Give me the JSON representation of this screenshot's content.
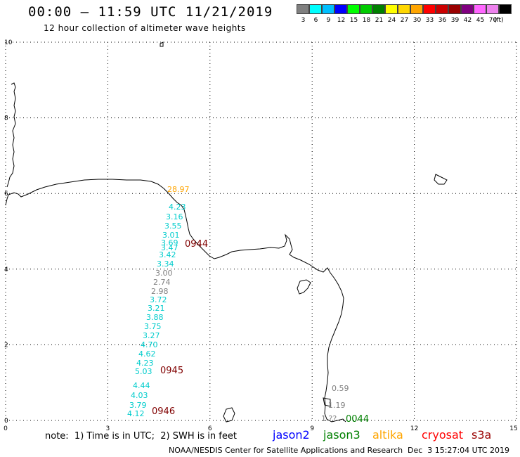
{
  "header": {
    "title": "00:00 – 11:59 UTC 11/21/2019",
    "subtitle": "12 hour collection of altimeter wave heights"
  },
  "colorbar": {
    "colors": [
      "#808080",
      "#00ffff",
      "#00bfff",
      "#0000ff",
      "#00ff00",
      "#00cc00",
      "#008000",
      "#ffff00",
      "#ffd700",
      "#ffa500",
      "#ff0000",
      "#cc0000",
      "#990000",
      "#800080",
      "#ff66ff",
      "#ee82ee",
      "#000000"
    ],
    "labels": [
      "3",
      "6",
      "9",
      "12",
      "15",
      "18",
      "21",
      "24",
      "27",
      "30",
      "33",
      "36",
      "39",
      "42",
      "45",
      "70"
    ],
    "unit": "(ft)"
  },
  "axes": {
    "x_ticks": [
      "0",
      "3",
      "6",
      "9",
      "12",
      "15"
    ],
    "y_ticks": [
      "0",
      "2",
      "4",
      "6",
      "8",
      "10"
    ]
  },
  "wave_labels": [
    {
      "text": "28.97",
      "color": "#ffa500"
    },
    {
      "text": "4.23",
      "color": "#00cccc"
    },
    {
      "text": "3.16",
      "color": "#00cccc"
    },
    {
      "text": "3.55",
      "color": "#00cccc"
    },
    {
      "text": "3.01",
      "color": "#00cccc"
    },
    {
      "text": "3.69",
      "color": "#00cccc"
    },
    {
      "text": "3.47",
      "color": "#00cccc"
    },
    {
      "text": "3.42",
      "color": "#00cccc"
    },
    {
      "text": "3.34",
      "color": "#00cccc"
    },
    {
      "text": "3.00",
      "color": "#808080"
    },
    {
      "text": "2.74",
      "color": "#808080"
    },
    {
      "text": "2.98",
      "color": "#808080"
    },
    {
      "text": "3.72",
      "color": "#00cccc"
    },
    {
      "text": "3.21",
      "color": "#00cccc"
    },
    {
      "text": "3.88",
      "color": "#00cccc"
    },
    {
      "text": "3.75",
      "color": "#00cccc"
    },
    {
      "text": "3.27",
      "color": "#00cccc"
    },
    {
      "text": "4.70",
      "color": "#00cccc"
    },
    {
      "text": "4.62",
      "color": "#00cccc"
    },
    {
      "text": "4.23",
      "color": "#00cccc"
    },
    {
      "text": "5.03",
      "color": "#00cccc"
    },
    {
      "text": "4.44",
      "color": "#00cccc"
    },
    {
      "text": "4.03",
      "color": "#00cccc"
    },
    {
      "text": "3.79",
      "color": "#00cccc"
    },
    {
      "text": "4.12",
      "color": "#00cccc"
    },
    {
      "text": "0.59",
      "color": "#808080"
    },
    {
      "text": "1.19",
      "color": "#808080"
    },
    {
      "text": "1.??",
      "color": "#808080"
    }
  ],
  "pass_times": [
    {
      "text": "0944",
      "color": "#800000"
    },
    {
      "text": "0945",
      "color": "#800000"
    },
    {
      "text": "0946",
      "color": "#800000"
    },
    {
      "text": "0044",
      "color": "#008000"
    }
  ],
  "footer": {
    "note": "note:  1) Time is in UTC;  2) SWH is in feet",
    "satellites": [
      {
        "name": "jason2",
        "color": "#0000ff"
      },
      {
        "name": "jason3",
        "color": "#008000"
      },
      {
        "name": "altika",
        "color": "#ffa500"
      },
      {
        "name": "cryosat",
        "color": "#ff0000"
      },
      {
        "name": "s3a",
        "color": "#990000"
      }
    ],
    "credit": "NOAA/NESDIS Center for Satellite Applications and Research",
    "timestamp": "Dec  3 15:27:04 UTC 2019"
  }
}
